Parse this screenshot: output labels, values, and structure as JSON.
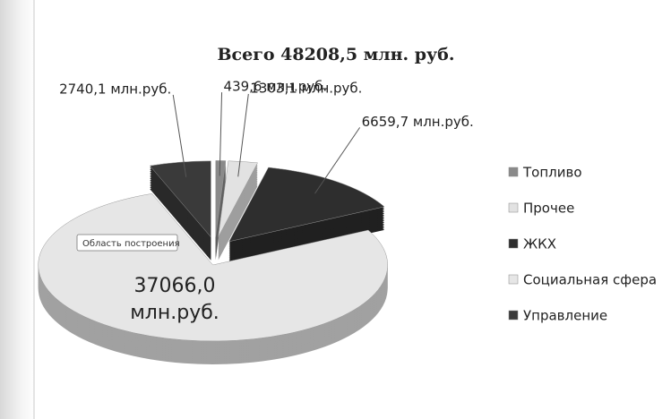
{
  "chart_data": {
    "type": "pie",
    "title": "Всего 48208,5 млн. руб.",
    "categories": [
      "Топливо",
      "Прочее",
      "ЖКХ",
      "Социальная сфера",
      "Управление"
    ],
    "values": [
      439.6,
      1303.1,
      6659.7,
      37066.0,
      2740.1
    ],
    "value_labels": [
      "439,6 млн.руб.",
      "1303,1 млн.руб.",
      "6659,7 млн.руб.",
      "37066,0 млн.руб.",
      "2740,1 млн.руб."
    ],
    "colors": [
      "#8a8a8a",
      "#e2e2e2",
      "#2e2e2e",
      "#e6e6e6",
      "#3a3a3a"
    ],
    "tooltip": "Область построения",
    "legend": "right"
  }
}
